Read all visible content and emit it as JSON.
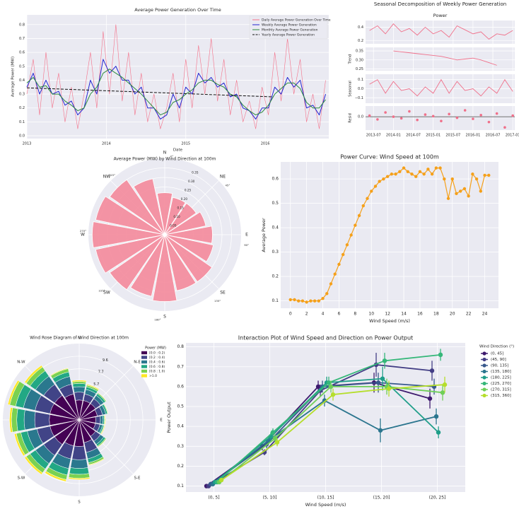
{
  "chart_data": [
    {
      "type": "line",
      "title": "Average Power Generation Over Time",
      "xlabel": "Date",
      "ylabel": "Average Power (MW)",
      "legend": "upper right",
      "x": [
        2013,
        2013.08,
        2013.16,
        2013.24,
        2013.32,
        2013.4,
        2013.48,
        2013.56,
        2013.64,
        2013.72,
        2013.8,
        2013.88,
        2013.96,
        2014.04,
        2014.12,
        2014.2,
        2014.28,
        2014.36,
        2014.44,
        2014.52,
        2014.6,
        2014.68,
        2014.76,
        2014.84,
        2014.92,
        2015,
        2015.08,
        2015.16,
        2015.24,
        2015.32,
        2015.4,
        2015.48,
        2015.56,
        2015.64,
        2015.72,
        2015.8,
        2015.88,
        2015.96,
        2016.04,
        2016.12,
        2016.2,
        2016.28,
        2016.36,
        2016.44,
        2016.52,
        2016.6,
        2016.68,
        2016.76
      ],
      "series": [
        {
          "name": "Daily Average Power Generation Over Time",
          "color": "#f4728a",
          "values": [
            0.3,
            0.55,
            0.15,
            0.6,
            0.2,
            0.45,
            0.1,
            0.35,
            0.05,
            0.3,
            0.6,
            0.2,
            0.75,
            0.3,
            0.8,
            0.25,
            0.6,
            0.15,
            0.45,
            0.1,
            0.3,
            0.05,
            0.2,
            0.45,
            0.1,
            0.55,
            0.2,
            0.65,
            0.3,
            0.7,
            0.25,
            0.55,
            0.15,
            0.4,
            0.1,
            0.25,
            0.05,
            0.35,
            0.15,
            0.6,
            0.25,
            0.7,
            0.3,
            0.55,
            0.1,
            0.3,
            0.05,
            0.4
          ]
        },
        {
          "name": "Weekly Average Power Generation",
          "color": "#2424d0",
          "values": [
            0.35,
            0.45,
            0.3,
            0.4,
            0.3,
            0.32,
            0.22,
            0.25,
            0.15,
            0.2,
            0.4,
            0.3,
            0.55,
            0.45,
            0.5,
            0.4,
            0.4,
            0.3,
            0.35,
            0.2,
            0.2,
            0.12,
            0.15,
            0.3,
            0.2,
            0.35,
            0.3,
            0.45,
            0.38,
            0.42,
            0.35,
            0.38,
            0.28,
            0.3,
            0.2,
            0.18,
            0.12,
            0.2,
            0.2,
            0.35,
            0.3,
            0.42,
            0.35,
            0.4,
            0.2,
            0.22,
            0.15,
            0.3
          ]
        },
        {
          "name": "Monthly Average Power Generation",
          "color": "#2e8b3e",
          "values": [
            0.38,
            0.42,
            0.35,
            0.36,
            0.3,
            0.3,
            0.25,
            0.22,
            0.18,
            0.2,
            0.3,
            0.35,
            0.45,
            0.48,
            0.45,
            0.42,
            0.38,
            0.34,
            0.3,
            0.25,
            0.2,
            0.15,
            0.17,
            0.24,
            0.26,
            0.3,
            0.33,
            0.38,
            0.4,
            0.4,
            0.37,
            0.35,
            0.3,
            0.28,
            0.22,
            0.18,
            0.15,
            0.17,
            0.22,
            0.3,
            0.34,
            0.38,
            0.38,
            0.34,
            0.24,
            0.2,
            0.2,
            0.26
          ]
        },
        {
          "name": "Yearly Average Power Generation",
          "color": "#111111",
          "linestyle": "dashed",
          "x": [
            2013,
            2016.1
          ],
          "values": [
            0.345,
            0.28
          ]
        }
      ],
      "xlim": [
        2013,
        2016.8
      ],
      "xticks": [
        2013,
        2014,
        2015,
        2016
      ],
      "ylim": [
        -0.02,
        0.87
      ],
      "yticks": [
        {
          "value": 0,
          "label": "0.0"
        },
        0.1,
        0.2,
        0.3,
        0.4,
        0.5,
        0.6,
        0.7,
        0.8
      ]
    },
    {
      "type": "decomposition",
      "title": "Seasonal Decomposition of Weekly Power Generation",
      "color": "#f0708a",
      "xlim": [
        2013.3,
        2017.05
      ],
      "xticks": [
        {
          "value": 2013.5,
          "label": "2013-07"
        },
        {
          "value": 2014,
          "label": "2014-01"
        },
        {
          "value": 2014.5,
          "label": "2014-07"
        },
        {
          "value": 2015,
          "label": "2015-01"
        },
        {
          "value": 2015.5,
          "label": "2015-07"
        },
        {
          "value": 2016,
          "label": "2016-01"
        },
        {
          "value": 2016.5,
          "label": "2016-07"
        },
        {
          "value": 2017,
          "label": "2017-01"
        }
      ],
      "panels": [
        {
          "type": "line",
          "title": "Power",
          "x": [
            2013.4,
            2013.6,
            2013.8,
            2014,
            2014.2,
            2014.4,
            2014.6,
            2014.8,
            2015,
            2015.2,
            2015.4,
            2015.6,
            2015.8,
            2016,
            2016.2,
            2016.4,
            2016.6,
            2016.8,
            2017
          ],
          "values": [
            0.35,
            0.42,
            0.3,
            0.45,
            0.33,
            0.38,
            0.28,
            0.4,
            0.3,
            0.35,
            0.25,
            0.42,
            0.36,
            0.3,
            0.33,
            0.22,
            0.3,
            0.28,
            0.35
          ],
          "ylim": [
            0.15,
            0.5
          ],
          "yticks": [
            0.2,
            0.4
          ]
        },
        {
          "type": "line",
          "ylabel": "Trend",
          "x": [
            2014,
            2014.2,
            2014.4,
            2014.6,
            2014.8,
            2015,
            2015.2,
            2015.4,
            2015.6,
            2015.8,
            2016,
            2016.2,
            2016.4,
            2016.6
          ],
          "values": [
            0.35,
            0.345,
            0.34,
            0.335,
            0.33,
            0.325,
            0.32,
            0.31,
            0.3,
            0.305,
            0.31,
            0.3,
            0.285,
            0.27
          ],
          "ylim": [
            0.24,
            0.37
          ],
          "yticks": [
            0.25,
            {
              "value": 0.3,
              "label": "0.30"
            },
            0.35
          ]
        },
        {
          "type": "line",
          "ylabel": "Seasonal",
          "x": [
            2013.4,
            2013.6,
            2013.8,
            2014,
            2014.2,
            2014.4,
            2014.6,
            2014.8,
            2015,
            2015.2,
            2015.4,
            2015.6,
            2015.8,
            2016,
            2016.2,
            2016.4,
            2016.6,
            2016.8,
            2017
          ],
          "values": [
            0.05,
            0.1,
            -0.05,
            0.08,
            -0.02,
            0.0,
            -0.08,
            0.02,
            -0.05,
            0.1,
            -0.05,
            0.08,
            -0.02,
            0.0,
            -0.08,
            0.02,
            -0.05,
            0.1,
            -0.03
          ],
          "ylim": [
            -0.16,
            0.16
          ],
          "yticks": [
            {
              "value": -0.1,
              "label": "−0.1"
            },
            {
              "value": 0,
              "label": "0.0"
            },
            0.1
          ]
        },
        {
          "type": "scatter",
          "ylabel": "Resid",
          "zero_line": true,
          "x": [
            2013.4,
            2013.6,
            2013.8,
            2014,
            2014.2,
            2014.4,
            2014.6,
            2014.8,
            2015,
            2015.2,
            2015.4,
            2015.6,
            2015.8,
            2016,
            2016.2,
            2016.4,
            2016.6,
            2016.8,
            2017
          ],
          "values": [
            0.02,
            -0.05,
            0.08,
            0.0,
            -0.03,
            0.1,
            -0.06,
            0.04,
            0.01,
            -0.08,
            0.05,
            -0.02,
            0.12,
            -0.04,
            0.03,
            -0.1,
            0.06,
            -0.2,
            0.02
          ],
          "ylim": [
            -0.25,
            0.2
          ],
          "yticks": [
            {
              "value": 0,
              "label": "0.0"
            }
          ]
        }
      ]
    },
    {
      "type": "polar_bar",
      "title": "Average Power (MW) by Wind Direction at 100m",
      "color": "#f48a9b",
      "theta": [
        0,
        22.5,
        45,
        67.5,
        90,
        112.5,
        135,
        157.5,
        180,
        202.5,
        225,
        247.5,
        270,
        292.5,
        315,
        337.5
      ],
      "values": [
        0.22,
        0.2,
        0.2,
        0.22,
        0.25,
        0.26,
        0.3,
        0.3,
        0.35,
        0.33,
        0.35,
        0.37,
        0.38,
        0.37,
        0.35,
        0.3
      ],
      "rlim": [
        0,
        0.4
      ],
      "rticks": [
        0.05,
        {
          "value": 0.1,
          "label": "0.10"
        },
        0.15,
        {
          "value": 0.2,
          "label": "0.20"
        },
        0.25,
        {
          "value": 0.3,
          "label": "0.30"
        },
        0.35
      ],
      "direction_labels": [
        "N",
        "NE",
        "E",
        "SE",
        "S",
        "SW",
        "W",
        "NW"
      ],
      "degree_labels": [
        "0°",
        "45°",
        "90°",
        "135°",
        "180°",
        "225°",
        "270°",
        "315°"
      ]
    },
    {
      "type": "line",
      "title": "Power Curve: Wind Speed at 100m",
      "xlabel": "Wind Speed (m/s)",
      "ylabel": "Average Power",
      "color": "#f5a01a",
      "marker": "o",
      "x": [
        0,
        0.5,
        1,
        1.5,
        2,
        2.5,
        3,
        3.5,
        4,
        4.5,
        5,
        5.5,
        6,
        6.5,
        7,
        7.5,
        8,
        8.5,
        9,
        9.5,
        10,
        10.5,
        11,
        11.5,
        12,
        12.5,
        13,
        13.5,
        14,
        14.5,
        15,
        15.5,
        16,
        16.5,
        17,
        17.5,
        18,
        18.5,
        19,
        19.5,
        20,
        20.5,
        21,
        21.5,
        22,
        22.5,
        23,
        23.5,
        24,
        24.5
      ],
      "values": [
        0.105,
        0.105,
        0.1,
        0.1,
        0.095,
        0.1,
        0.1,
        0.1,
        0.11,
        0.13,
        0.17,
        0.21,
        0.25,
        0.29,
        0.33,
        0.37,
        0.41,
        0.45,
        0.49,
        0.52,
        0.55,
        0.57,
        0.59,
        0.6,
        0.61,
        0.62,
        0.62,
        0.63,
        0.645,
        0.63,
        0.62,
        0.61,
        0.63,
        0.62,
        0.64,
        0.62,
        0.645,
        0.645,
        0.6,
        0.52,
        0.6,
        0.54,
        0.55,
        0.56,
        0.53,
        0.62,
        0.6,
        0.55,
        0.615,
        0.615
      ],
      "xlim": [
        -1.2,
        25.7
      ],
      "xticks": [
        0,
        2,
        4,
        6,
        8,
        10,
        12,
        14,
        16,
        18,
        20,
        22,
        24
      ],
      "ylim": [
        0.07,
        0.67
      ],
      "yticks": [
        0.1,
        0.2,
        0.3,
        0.4,
        0.5,
        0.6
      ]
    },
    {
      "type": "wind_rose",
      "title": "Wind Rose Diagram of Wind Direction at 100m",
      "legend_title": "Power (MW)",
      "theta": [
        0,
        22.5,
        45,
        67.5,
        90,
        112.5,
        135,
        157.5,
        180,
        202.5,
        225,
        247.5,
        270,
        292.5,
        315,
        337.5
      ],
      "series": [
        {
          "name": "[0.0 : 0.2)",
          "color": "#440154",
          "values": [
            3,
            3,
            3,
            2.8,
            2.5,
            2.5,
            3,
            3.5,
            4,
            4,
            4.5,
            4.5,
            4.5,
            4.5,
            4.5,
            4
          ]
        },
        {
          "name": "[0.2 : 0.4)",
          "color": "#414487",
          "values": [
            1.2,
            1,
            0.9,
            0.8,
            0.7,
            0.7,
            0.9,
            1.5,
            2,
            2,
            2,
            2,
            2.2,
            2.3,
            2,
            1.5
          ]
        },
        {
          "name": "[0.4 : 0.6)",
          "color": "#2a788e",
          "values": [
            0.8,
            0.7,
            0.6,
            0.5,
            0.4,
            0.4,
            0.6,
            1,
            1.3,
            1.5,
            1.5,
            1.5,
            1.6,
            1.8,
            1.5,
            1.2
          ]
        },
        {
          "name": "[0.6 : 0.8)",
          "color": "#22a884",
          "values": [
            0.5,
            0.4,
            0.3,
            0.25,
            0.2,
            0.2,
            0.3,
            0.6,
            0.9,
            1,
            1,
            1,
            1.1,
            1.2,
            1,
            0.7
          ]
        },
        {
          "name": "[0.8 : 1.0)",
          "color": "#7ad151",
          "values": [
            0.3,
            0.25,
            0.15,
            0.1,
            0.1,
            0.1,
            0.15,
            0.3,
            0.6,
            0.7,
            0.7,
            0.7,
            0.8,
            0.9,
            0.7,
            0.5
          ]
        },
        {
          "name": ">1.0",
          "color": "#fde725",
          "values": [
            0.2,
            0.15,
            0.05,
            0.05,
            0.1,
            0.1,
            0.05,
            0.1,
            0.2,
            0.3,
            0.3,
            0.3,
            0.3,
            0.3,
            0.3,
            0.1
          ]
        }
      ],
      "rlim": [
        0,
        11.5
      ],
      "rticks": [
        5.7,
        7.7,
        9.6
      ],
      "direction_labels": [
        "N",
        "N-E",
        "E",
        "S-E",
        "S",
        "S-W",
        "W",
        "N-W"
      ]
    },
    {
      "type": "point",
      "title": "Interaction Plot of Wind Speed and Direction on Power Output",
      "xlabel": "Wind Speed (m/s)",
      "ylabel": "Power Output",
      "legend_title": "Wind Direction (°)",
      "categories": [
        "(0, 5]",
        "(5, 10]",
        "(10, 15]",
        "(15, 20]",
        "(20, 25]"
      ],
      "series": [
        {
          "name": "(0, 45]",
          "color": "#3e1a6e",
          "values": [
            0.1,
            0.3,
            0.6,
            0.62,
            0.54
          ],
          "errors": [
            0.01,
            0.02,
            0.03,
            0.05,
            0.05
          ]
        },
        {
          "name": "(45, 90]",
          "color": "#433e85",
          "values": [
            0.1,
            0.27,
            0.58,
            0.71,
            0.68
          ],
          "errors": [
            0.01,
            0.015,
            0.03,
            0.06,
            0.05
          ]
        },
        {
          "name": "(90, 135]",
          "color": "#38598c",
          "values": [
            0.11,
            0.31,
            0.6,
            0.62,
            0.6
          ],
          "errors": [
            0.01,
            0.02,
            0.03,
            0.05,
            0.04
          ]
        },
        {
          "name": "(135, 180]",
          "color": "#2b758e",
          "values": [
            0.11,
            0.33,
            0.53,
            0.38,
            0.45
          ],
          "errors": [
            0.01,
            0.02,
            0.03,
            0.06,
            0.04
          ]
        },
        {
          "name": "(180, 225]",
          "color": "#1f9e89",
          "values": [
            0.12,
            0.35,
            0.62,
            0.64,
            0.37
          ],
          "errors": [
            0.01,
            0.02,
            0.03,
            0.06,
            0.03
          ]
        },
        {
          "name": "(225, 270]",
          "color": "#35b779",
          "values": [
            0.12,
            0.37,
            0.62,
            0.73,
            0.76
          ],
          "errors": [
            0.01,
            0.02,
            0.03,
            0.04,
            0.03
          ]
        },
        {
          "name": "(270, 315]",
          "color": "#6ece58",
          "values": [
            0.12,
            0.34,
            0.6,
            0.6,
            0.57
          ],
          "errors": [
            0.01,
            0.02,
            0.03,
            0.04,
            0.04
          ]
        },
        {
          "name": "(315, 360]",
          "color": "#b5de2b",
          "values": [
            0.13,
            0.32,
            0.56,
            0.59,
            0.61
          ],
          "errors": [
            0.01,
            0.02,
            0.03,
            0.04,
            0.04
          ]
        }
      ],
      "ylim": [
        0.07,
        0.82
      ],
      "yticks": [
        0.1,
        0.2,
        0.3,
        0.4,
        0.5,
        0.6,
        0.7,
        0.8
      ]
    }
  ]
}
